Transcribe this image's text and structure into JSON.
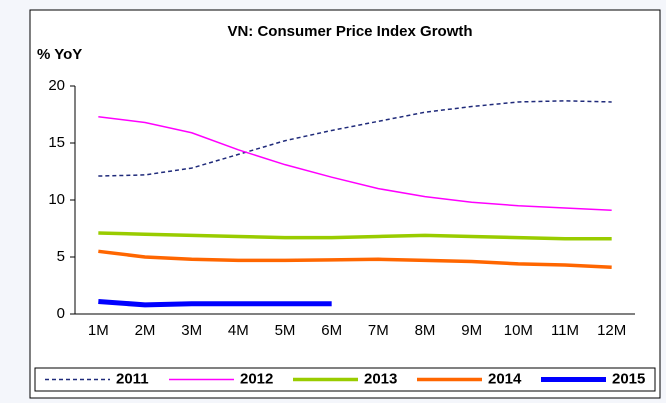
{
  "chart_data": {
    "type": "line",
    "title": "VN: Consumer Price Index Growth",
    "y_label": "% YoY",
    "categories": [
      "1M",
      "2M",
      "3M",
      "4M",
      "5M",
      "6M",
      "7M",
      "8M",
      "9M",
      "10M",
      "11M",
      "12M"
    ],
    "ylim": [
      0,
      20
    ],
    "yticks": [
      0,
      5,
      10,
      15,
      20
    ],
    "legend": "bottom",
    "series": [
      {
        "name": "2011",
        "color": "#1f2a7a",
        "line_width": 1.5,
        "dashed": true,
        "values": [
          12.1,
          12.2,
          12.8,
          14.0,
          15.2,
          16.1,
          16.9,
          17.7,
          18.2,
          18.6,
          18.7,
          18.6
        ]
      },
      {
        "name": "2012",
        "color": "#ff00ff",
        "line_width": 1.5,
        "dashed": false,
        "values": [
          17.3,
          16.8,
          15.9,
          14.4,
          13.1,
          12.0,
          11.0,
          10.3,
          9.8,
          9.5,
          9.3,
          9.1
        ]
      },
      {
        "name": "2013",
        "color": "#99cc00",
        "line_width": 3.5,
        "dashed": false,
        "values": [
          7.1,
          7.0,
          6.9,
          6.8,
          6.7,
          6.7,
          6.8,
          6.9,
          6.8,
          6.7,
          6.6,
          6.6
        ]
      },
      {
        "name": "2014",
        "color": "#ff6600",
        "line_width": 3.5,
        "dashed": false,
        "values": [
          5.5,
          5.0,
          4.8,
          4.7,
          4.7,
          4.75,
          4.8,
          4.7,
          4.6,
          4.4,
          4.3,
          4.1
        ]
      },
      {
        "name": "2015",
        "color": "#0000ff",
        "line_width": 5,
        "dashed": false,
        "values": [
          1.1,
          0.8,
          0.9,
          0.9,
          0.9,
          0.9,
          null,
          null,
          null,
          null,
          null,
          null
        ]
      }
    ]
  }
}
